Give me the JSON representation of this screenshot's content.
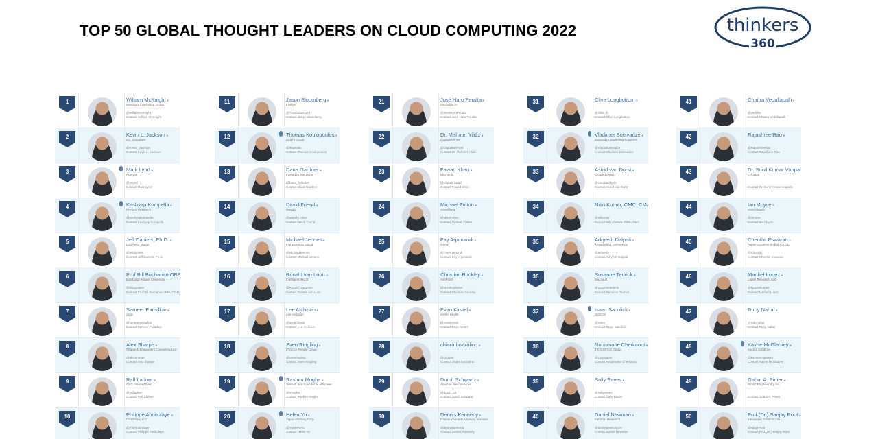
{
  "title": "TOP 50 GLOBAL THOUGHT LEADERS ON CLOUD COMPUTING 2022",
  "logo": {
    "line1": "thinkers",
    "line2": "360"
  },
  "colors": {
    "rank_badge": "#2b4a73",
    "name": "#3c6fa0",
    "logo": "#1f3d6b",
    "alt_row": "#eaf6fb"
  },
  "columns": [
    {
      "leaders": [
        {
          "rank": "1",
          "name": "William McKnight",
          "org": "McKnight Consulting Group",
          "handle": "@williammcknight",
          "contact": "Contact William McKnight"
        },
        {
          "rank": "2",
          "name": "Kevin L. Jackson",
          "org": "GC GlobalNet",
          "handle": "@Kevin_Jackson",
          "contact": "Contact Kevin L. Jackson"
        },
        {
          "rank": "3",
          "name": "Mark Lynd",
          "org": "Netsync",
          "handle": "@mlynd",
          "contact": "Contact Mark Lynd",
          "mic": true
        },
        {
          "rank": "4",
          "name": "Kashyap Kompella",
          "org": "RPA2AI Research",
          "handle": "@kashyapkompella",
          "contact": "Contact Kashyap Kompella",
          "mic": true
        },
        {
          "rank": "5",
          "name": "Jeff Daniels, Ph.D.",
          "org": "Lockheed Martin",
          "handle": "@jeffdaniels",
          "contact": "Contact Jeff Daniels, Ph.D."
        },
        {
          "rank": "6",
          "name": "Prof Bill Buchanan OBE, Ph.D.",
          "org": "Edinburgh Napier University",
          "handle": "@billatnapier",
          "contact": "Contact Prof Bill Buchanan OBE, Ph.D."
        },
        {
          "rank": "7",
          "name": "Sameer Paradkar",
          "org": "AtoS",
          "handle": "@sameerparadkar",
          "contact": "Contact Sameer Paradkar"
        },
        {
          "rank": "8",
          "name": "Alex Sharpe",
          "org": "Sharpe Management Consulting LLC",
          "handle": "@alexsharpe",
          "contact": "Contact Alex Sharpe"
        },
        {
          "rank": "9",
          "name": "Ralf Ladner",
          "org": "CEO, Nexus4Ever",
          "handle": "@ralfladner",
          "contact": "Contact Ralf Ladner"
        },
        {
          "rank": "10",
          "name": "Philippe Abdoulaye",
          "org": "ITaaSNow, LLC",
          "handle": "@PhilAbdoulaye",
          "contact": "Contact Philippe Abdoulaye"
        }
      ]
    },
    {
      "leaders": [
        {
          "rank": "11",
          "name": "Jason Bloomberg",
          "org": "Intellyx",
          "handle": "@TheEbizWizard",
          "contact": "Contact Jason Bloomberg"
        },
        {
          "rank": "12",
          "name": "Thomas Koulopoulos",
          "org": "Delphi Group",
          "handle": "@tkspeaks",
          "contact": "Contact Thomas Koulopoulos",
          "mic": true
        },
        {
          "rank": "13",
          "name": "Dana Gardner",
          "org": "Interarbor Solutions",
          "handle": "@Dana_Gardner",
          "contact": "Contact Dana Gardner"
        },
        {
          "rank": "14",
          "name": "David Friend",
          "org": "Wasabi",
          "handle": "@wasabi_dave",
          "contact": "Contact David Friend"
        },
        {
          "rank": "15",
          "name": "Michael Jennes",
          "org": "Ingram Micro Cloud",
          "handle": "@MichaelJennes",
          "contact": "Contact Michael Jennes"
        },
        {
          "rank": "16",
          "name": "Ronald van Loon",
          "org": "Intelligent World",
          "handle": "@Ronald_vanLoon",
          "contact": "Contact Ronald van Loon"
        },
        {
          "rank": "17",
          "name": "Lee Atchison",
          "org": "Lee Atchison",
          "handle": "@leeatchison",
          "contact": "Contact Lee Atchison"
        },
        {
          "rank": "18",
          "name": "Sven Ringling",
          "org": "iProCon People Cloud",
          "handle": "@svenringling",
          "contact": "Contact Sven Ringling"
        },
        {
          "rank": "19",
          "name": "Rashim Mogha",
          "org": "Skillsoft and Founder at eMpower",
          "handle": "@rmogha",
          "contact": "Contact Rashim Mogha",
          "mic": true
        },
        {
          "rank": "20",
          "name": "Helen Yu",
          "org": "Tigon Advisory Corp.",
          "handle": "@YuHelenYu",
          "contact": "Contact Helen Yu",
          "mic": true
        }
      ]
    },
    {
      "leaders": [
        {
          "rank": "21",
          "name": "José Haro Peralta",
          "org": "microapis.io",
          "handle": "@JoseHaroPeralta",
          "contact": "Contact José Haro Peralta"
        },
        {
          "rank": "22",
          "name": "Dr. Mehmet Yildiz",
          "org": "DigitalMehmet",
          "handle": "@DigitalMehmet",
          "contact": "Contact Dr. Mehmet Yildiz"
        },
        {
          "rank": "23",
          "name": "Fawad Khan",
          "org": "Microsoft",
          "handle": "@DigitalFawad",
          "contact": "Contact Fawad Khan"
        },
        {
          "rank": "24",
          "name": "Michael Fulton",
          "org": "Greenlamp",
          "handle": "@MikeFulton",
          "contact": "Contact Michael Fulton"
        },
        {
          "rank": "25",
          "name": "Fay Arjomandi",
          "org": "mimik",
          "handle": "@FayArjomandi",
          "contact": "Contact Fay Arjomandi"
        },
        {
          "rank": "26",
          "name": "Christian Buckley",
          "org": "AvePoint",
          "handle": "@buckleyplanet",
          "contact": "Contact Christian Buckley"
        },
        {
          "rank": "27",
          "name": "Evan Kirstel",
          "org": "eViRA Health",
          "handle": "@evankirstel",
          "contact": "Contact Evan Kirstel"
        },
        {
          "rank": "28",
          "name": "chiara bozzolino",
          "org": "",
          "handle": "@chiarab",
          "contact": "Contact chiara bozzolino"
        },
        {
          "rank": "29",
          "name": "Dutch Schwartz",
          "org": "Amazon Web Services",
          "handle": "@dutch_33",
          "contact": "Contact Dutch Schwartz"
        },
        {
          "rank": "30",
          "name": "Dennis Kennedy",
          "org": "Dennis Kennedy Advisory Services",
          "handle": "@denniskennedy",
          "contact": "Contact Dennis Kennedy"
        }
      ]
    },
    {
      "leaders": [
        {
          "rank": "31",
          "name": "Clive Longbottom",
          "org": "",
          "handle": "@clive_lb",
          "contact": "Contact Clive Longbottom"
        },
        {
          "rank": "32",
          "name": "Vladimer Botsvadze",
          "org": "Botsvadze Marketing Solutions",
          "handle": "@VladoBotsvadze",
          "contact": "Contact Vladimer Botsvadze",
          "mic": true
        },
        {
          "rank": "33",
          "name": "Astrid van Dorst",
          "org": "CloudAnalysis",
          "handle": "@cloudanalysis",
          "contact": "Contact Astrid van Dorst"
        },
        {
          "rank": "34",
          "name": "Nitin Kumar, CMC, CMA",
          "org": "",
          "handle": "@nitkumar",
          "contact": "Contact Nitin Kumar, CMC, CMA"
        },
        {
          "rank": "35",
          "name": "Adryesh Dalpati",
          "org": "X Marketing Technology",
          "handle": "@adryesh",
          "contact": "Contact Adryesh Dalpati"
        },
        {
          "rank": "36",
          "name": "Susanne Tedrick",
          "org": "Microsoft",
          "handle": "@susannetedrick",
          "contact": "Contact Susanne Tedrick"
        },
        {
          "rank": "37",
          "name": "Isaac Sacolick",
          "org": "StarCIO",
          "handle": "@nyike",
          "contact": "Contact Isaac Sacolick",
          "mic": true
        },
        {
          "rank": "38",
          "name": "Nouamane Cherkaoui",
          "org": "TICS SPICE Group",
          "handle": "@Cherkaoui",
          "contact": "Contact Nouamane Cherkaoui"
        },
        {
          "rank": "39",
          "name": "Sally Eaves",
          "org": "",
          "handle": "@sallyeaves",
          "contact": "Contact Sally Eaves"
        },
        {
          "rank": "40",
          "name": "Daniel Newman",
          "org": "Futurum Research",
          "handle": "@danielnewmanUV",
          "contact": "Contact Daniel Newman"
        }
      ]
    },
    {
      "leaders": [
        {
          "rank": "41",
          "name": "Chaitra Vedullapalli",
          "org": "",
          "handle": "@vedulla",
          "contact": "Contact Chaitra Vedullapalli"
        },
        {
          "rank": "42",
          "name": "Rajashree Rao",
          "org": "",
          "handle": "@RajashreeRao",
          "contact": "Contact Rajashree Rao"
        },
        {
          "rank": "43",
          "name": "Dr. Sunil Kumar Vuppala",
          "org": "Ericsson",
          "handle": "",
          "contact": "Contact Dr. Sunil Kumar Vuppala"
        },
        {
          "rank": "44",
          "name": "Ian Moyse",
          "org": "OneLoSales",
          "handle": "@imoyse",
          "contact": "Contact Ian Moyse"
        },
        {
          "rank": "45",
          "name": "Chenthil Eswaran",
          "org": "Aspire Systems (India) Pvt. Ltd",
          "handle": "@Chenthil",
          "contact": "Contact Chenthil Eswaran"
        },
        {
          "rank": "46",
          "name": "Maribel Lopez",
          "org": "Lopez Research LLC",
          "handle": "@MaribelLopez",
          "contact": "Contact Maribel Lopez"
        },
        {
          "rank": "47",
          "name": "Ruby Nahal",
          "org": "",
          "handle": "@rubynahal",
          "contact": "Contact Ruby Nahal"
        },
        {
          "rank": "48",
          "name": "Kayne McGladrey",
          "org": "Ascent Solutions",
          "handle": "@kaynemcgladrey",
          "contact": "Contact Kayne McGladrey",
          "mic": true
        },
        {
          "rank": "49",
          "name": "Gabor A. Pinter",
          "org": "BEND Engineering, Inc.",
          "handle": "",
          "contact": "Contact Gabor A. Pinter"
        },
        {
          "rank": "50",
          "name": "Prof.(Dr.) Sanjay Rout",
          "org": "Innovation Solution Lab",
          "handle": "@sanjayrout",
          "contact": "Contact Prof.(Dr.) Sanjay Rout"
        }
      ]
    }
  ]
}
